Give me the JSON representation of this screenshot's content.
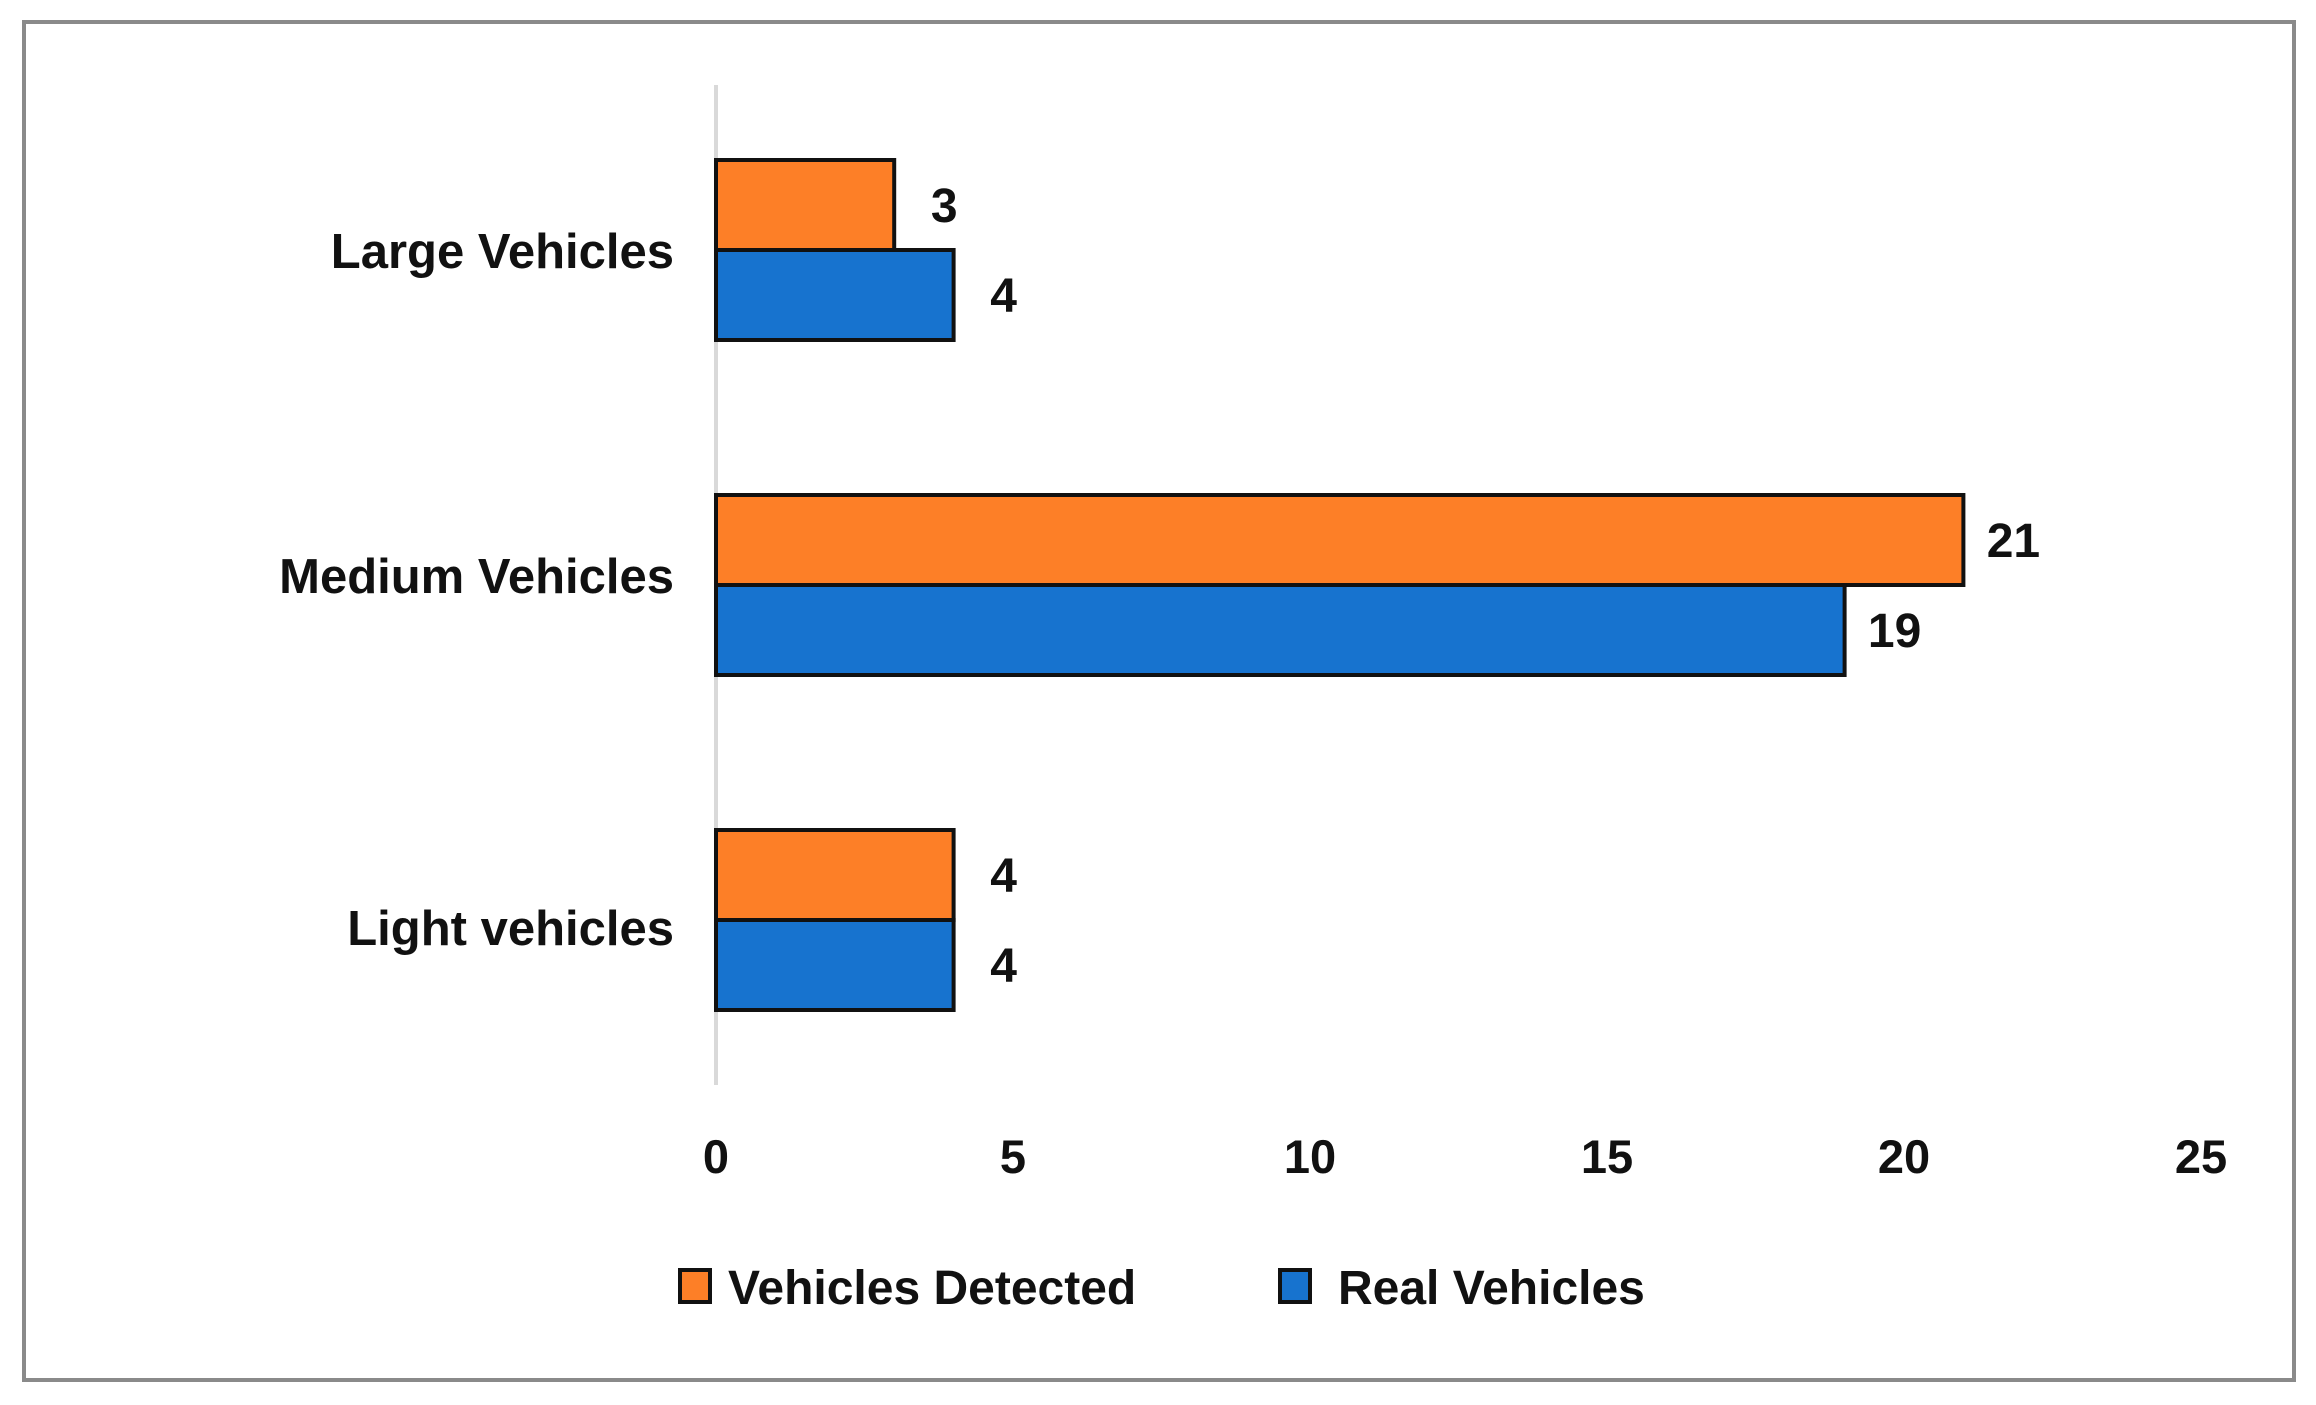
{
  "chart_data": {
    "type": "bar",
    "orientation": "horizontal",
    "categories": [
      "Large Vehicles",
      "Medium Vehicles",
      "Light vehicles"
    ],
    "series": [
      {
        "name": "Vehicles Detected",
        "values": [
          3,
          21,
          4
        ],
        "color": "#fd7f27"
      },
      {
        "name": "Real Vehicles",
        "values": [
          4,
          19,
          4
        ],
        "color": "#1773cf"
      }
    ],
    "xlim": [
      0,
      25
    ],
    "xticks": [
      "0",
      "5",
      "10",
      "15",
      "20",
      "25"
    ],
    "grid": false,
    "legend_position": "bottom",
    "data_labels": true
  }
}
